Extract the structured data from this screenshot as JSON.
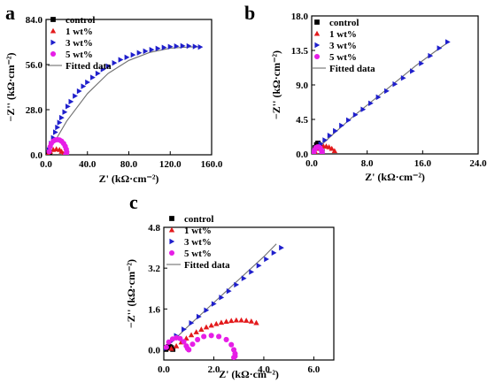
{
  "chart_data": [
    {
      "panel": "a",
      "type": "scatter",
      "xlabel": "Z' (kΩ·cm⁻²)",
      "ylabel": "−Z'' (kΩ·cm⁻²)",
      "xlim": [
        0,
        160
      ],
      "ylim": [
        0,
        84
      ],
      "xticks": [
        "0.0",
        "40.0",
        "80.0",
        "120.0",
        "160.0"
      ],
      "yticks": [
        "0.0",
        "28.0",
        "56.0",
        "84.0"
      ],
      "legend_position": "top-left",
      "series": [
        {
          "name": "control",
          "marker": "square",
          "color": "#000000",
          "x": [
            1.2,
            1.8,
            2.4,
            3.0,
            3.6
          ],
          "y": [
            0.2,
            0.8,
            1.1,
            0.8,
            0.2
          ]
        },
        {
          "name": "1 wt%",
          "marker": "triangle-up",
          "color": "#e31a1c",
          "x": [
            2,
            4,
            7,
            10,
            13,
            15,
            17
          ],
          "y": [
            0.5,
            2,
            3.2,
            3.6,
            3.2,
            2,
            0.6
          ]
        },
        {
          "name": "3 wt%",
          "marker": "triangle-right",
          "color": "#1f1fcc",
          "x": [
            3,
            5,
            7,
            9,
            11,
            13,
            15,
            18,
            21,
            24,
            28,
            32,
            36,
            40,
            45,
            50,
            55,
            60,
            66,
            72,
            78,
            84,
            90,
            96,
            102,
            108,
            114,
            120,
            126,
            132,
            138,
            144,
            149
          ],
          "y": [
            3,
            7,
            10.5,
            14,
            17,
            20,
            23,
            26.5,
            30,
            33,
            36.5,
            39.5,
            42.5,
            45,
            48,
            50.5,
            53,
            55,
            57,
            59,
            60.5,
            62,
            63.3,
            64.3,
            65.2,
            66,
            66.6,
            67.1,
            67.4,
            67.6,
            67.5,
            67.2,
            66.9
          ]
        },
        {
          "name": "5 wt%",
          "marker": "circle",
          "color": "#e61ee6",
          "x": [
            3,
            4,
            5,
            7,
            9,
            11,
            13,
            15,
            17,
            18.5,
            19.5,
            20,
            19.8,
            19
          ],
          "y": [
            2,
            5,
            7,
            8.5,
            9.2,
            9.4,
            9.2,
            8.4,
            7,
            5.3,
            3.5,
            1.8,
            0.6,
            0.1
          ]
        },
        {
          "name": "Fitted data",
          "marker": "line",
          "color": "#707070",
          "x": [
            0,
            10,
            20,
            40,
            60,
            80,
            100,
            120,
            140,
            149
          ],
          "y": [
            0,
            10,
            21,
            38,
            50.5,
            58.6,
            63.5,
            66.2,
            67.0,
            66.9
          ]
        }
      ]
    },
    {
      "panel": "b",
      "type": "scatter",
      "xlabel": "Z' (kΩ·cm⁻²)",
      "ylabel": "−Z'' (kΩ·cm⁻²)",
      "xlim": [
        0,
        24
      ],
      "ylim": [
        0,
        18
      ],
      "xticks": [
        "0.0",
        "8.0",
        "16.0",
        "24.0"
      ],
      "yticks": [
        "0.0",
        "4.5",
        "9.0",
        "13.5",
        "18.0"
      ],
      "legend_position": "top-left",
      "series": [
        {
          "name": "control",
          "marker": "square",
          "color": "#000000",
          "x": [
            0.3,
            0.5,
            0.7,
            0.9,
            1.1,
            1.3,
            1.5
          ],
          "y": [
            0.3,
            0.8,
            1.2,
            1.4,
            1.2,
            0.8,
            0.3
          ]
        },
        {
          "name": "1 wt%",
          "marker": "triangle-up",
          "color": "#e31a1c",
          "x": [
            0.5,
            0.9,
            1.3,
            1.7,
            2.1,
            2.5,
            2.9,
            3.3
          ],
          "y": [
            0.3,
            0.7,
            0.9,
            1.0,
            1.0,
            0.9,
            0.7,
            0.4
          ]
        },
        {
          "name": "3 wt%",
          "marker": "triangle-right",
          "color": "#1f1fcc",
          "x": [
            0.3,
            0.8,
            1.3,
            1.9,
            2.6,
            3.4,
            4.3,
            5.3,
            6.3,
            7.4,
            8.5,
            9.6,
            10.8,
            12.0,
            13.2,
            14.5,
            15.8,
            17.1,
            18.4,
            19.6
          ],
          "y": [
            0.3,
            0.8,
            1.3,
            1.8,
            2.4,
            3.0,
            3.7,
            4.4,
            5.1,
            5.8,
            6.6,
            7.4,
            8.2,
            9.1,
            9.9,
            10.8,
            11.8,
            12.8,
            13.8,
            14.6
          ]
        },
        {
          "name": "5 wt%",
          "marker": "circle",
          "color": "#e61ee6",
          "x": [
            0.3,
            0.4,
            0.6,
            0.8,
            1.0,
            1.2,
            1.4,
            1.5,
            1.5
          ],
          "y": [
            0.2,
            0.5,
            0.8,
            0.9,
            0.9,
            0.8,
            0.5,
            0.3,
            0.1
          ]
        },
        {
          "name": "Fitted data",
          "marker": "line",
          "color": "#707070",
          "x": [
            0,
            3,
            6,
            9,
            12,
            15,
            18,
            19.6
          ],
          "y": [
            0,
            2.5,
            4.9,
            7.1,
            9.3,
            11.5,
            13.5,
            14.5
          ]
        }
      ]
    },
    {
      "panel": "c",
      "type": "scatter",
      "xlabel": "Z' (kΩ·cm⁻²)",
      "ylabel": "−Z'' (kΩ·cm⁻²)",
      "xlim": [
        0,
        6.8
      ],
      "ylim": [
        -0.4,
        4.8
      ],
      "xticks": [
        "0.0",
        "2.0",
        "4.0",
        "6.0"
      ],
      "xtick_values": [
        0,
        2,
        4,
        6
      ],
      "yticks": [
        "0.0",
        "1.6",
        "3.2",
        "4.8"
      ],
      "ytick_values": [
        0,
        1.6,
        3.2,
        4.8
      ],
      "legend_position": "top-left",
      "series": [
        {
          "name": "control",
          "marker": "square",
          "color": "#000000",
          "x": [
            0.08,
            0.12,
            0.18,
            0.24,
            0.3,
            0.36
          ],
          "y": [
            0.02,
            0.08,
            0.12,
            0.12,
            0.08,
            0.02
          ]
        },
        {
          "name": "1 wt%",
          "marker": "triangle-up",
          "color": "#e31a1c",
          "x": [
            0.3,
            0.5,
            0.7,
            0.9,
            1.1,
            1.3,
            1.5,
            1.7,
            1.9,
            2.1,
            2.3,
            2.5,
            2.7,
            2.9,
            3.1,
            3.3,
            3.5,
            3.7
          ],
          "y": [
            0.05,
            0.15,
            0.3,
            0.45,
            0.58,
            0.7,
            0.8,
            0.89,
            0.96,
            1.02,
            1.07,
            1.11,
            1.14,
            1.16,
            1.16,
            1.15,
            1.12,
            1.06
          ]
        },
        {
          "name": "3 wt%",
          "marker": "triangle-right",
          "color": "#1f1fcc",
          "x": [
            0.05,
            0.25,
            0.5,
            0.8,
            1.1,
            1.4,
            1.7,
            2.0,
            2.3,
            2.6,
            2.9,
            3.2,
            3.5,
            3.8,
            4.1,
            4.4,
            4.7
          ],
          "y": [
            0.05,
            0.3,
            0.55,
            0.8,
            1.05,
            1.3,
            1.55,
            1.8,
            2.05,
            2.3,
            2.55,
            2.8,
            3.05,
            3.3,
            3.55,
            3.8,
            4.0
          ]
        },
        {
          "name": "5 wt%",
          "marker": "circle",
          "color": "#e61ee6",
          "x": [
            0.1,
            0.2,
            0.35,
            0.5,
            0.65,
            0.8,
            0.9,
            0.95,
            1.0,
            1.15,
            1.35,
            1.6,
            1.9,
            2.2,
            2.5,
            2.7,
            2.8,
            2.85,
            2.85,
            2.8
          ],
          "y": [
            0.1,
            0.3,
            0.42,
            0.47,
            0.44,
            0.32,
            0.15,
            0.05,
            0.0,
            0.22,
            0.4,
            0.52,
            0.56,
            0.52,
            0.4,
            0.2,
            0.0,
            -0.15,
            -0.25,
            -0.3
          ]
        },
        {
          "name": "Fitted data",
          "marker": "line",
          "color": "#707070",
          "x": [
            0,
            1,
            2,
            3,
            4,
            4.5
          ],
          "y": [
            0,
            0.95,
            1.85,
            2.75,
            3.65,
            4.15
          ]
        }
      ]
    }
  ]
}
